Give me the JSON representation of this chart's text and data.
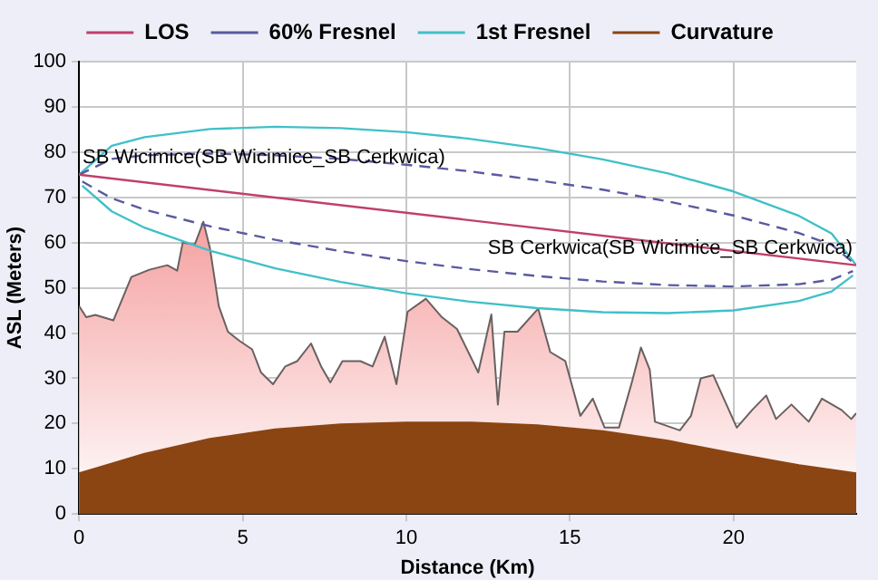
{
  "chart_data": {
    "type": "line",
    "xlabel": "Distance (Km)",
    "ylabel": "ASL (Meters)",
    "xlim": [
      0,
      23.75
    ],
    "xticks": [
      0,
      5,
      10,
      15,
      20
    ],
    "ylim": [
      0,
      100
    ],
    "yticks": [
      0,
      10,
      20,
      30,
      40,
      50,
      60,
      70,
      80,
      90,
      100
    ],
    "grid": true,
    "legend": "top",
    "marker": "none",
    "series": [
      {
        "type": "line",
        "name": "LOS",
        "color": "#c0406a",
        "line_style": "solid",
        "x": [
          0,
          23.75
        ],
        "values": [
          75,
          55
        ]
      },
      {
        "type": "line",
        "name": "60% Fresnel",
        "color": "#5a5aa0",
        "line_style": "dashed",
        "x": [
          0,
          1,
          2,
          4,
          6,
          8,
          10,
          11.875,
          14,
          16,
          18,
          20,
          22,
          23,
          23.75
        ],
        "values": [
          75,
          78.5,
          79.3,
          79.7,
          79.3,
          78.5,
          77.2,
          75.8,
          73.8,
          71.7,
          69.1,
          66.0,
          62.1,
          59.5,
          55
        ]
      },
      {
        "type": "line",
        "color": "#5a5aa0",
        "line_style": "dashed",
        "x": [
          0.1,
          1,
          2,
          4,
          6,
          8,
          10,
          11.875,
          14,
          16,
          18,
          20,
          22,
          23,
          23.65
        ],
        "values": [
          73.5,
          69.8,
          67.3,
          63.6,
          60.6,
          58.1,
          55.9,
          54.2,
          52.6,
          51.4,
          50.6,
          50.3,
          50.8,
          51.8,
          53.7
        ]
      },
      {
        "type": "line",
        "name": "1st Fresnel",
        "color": "#40c0c8",
        "line_style": "solid",
        "x": [
          0,
          1,
          2,
          4,
          6,
          8,
          10,
          11.875,
          14,
          16,
          18,
          20,
          22,
          23,
          23.75
        ],
        "values": [
          75,
          81.4,
          83.3,
          85.1,
          85.6,
          85.3,
          84.4,
          83,
          80.9,
          78.4,
          75.3,
          71.3,
          65.9,
          62.0,
          55
        ]
      },
      {
        "type": "line",
        "color": "#40c0c8",
        "line_style": "solid",
        "x": [
          0.1,
          1,
          2,
          4,
          6,
          8,
          10,
          11.875,
          14,
          16,
          18,
          20,
          22,
          23,
          23.65
        ],
        "values": [
          72.6,
          66.9,
          63.3,
          58.2,
          54.3,
          51.3,
          48.8,
          47,
          45.5,
          44.6,
          44.4,
          45.0,
          47.1,
          49.2,
          52.75
        ]
      },
      {
        "type": "area",
        "name": "Curvature",
        "color": "#8b4513",
        "x": [
          0,
          2,
          4,
          6,
          8,
          10,
          12,
          14,
          16,
          18,
          20,
          22,
          23.75
        ],
        "values": [
          9,
          13.3,
          16.6,
          18.7,
          19.8,
          20.2,
          20.2,
          19.6,
          18.3,
          16.2,
          13.4,
          10.8,
          9
        ]
      },
      {
        "type": "area",
        "color": "#f5a0a0",
        "x": [
          0,
          0.22,
          0.5,
          1.05,
          1.6,
          2.15,
          2.7,
          3.0,
          3.17,
          3.54,
          3.8,
          4.0,
          4.27,
          4.55,
          4.9,
          5.29,
          5.56,
          5.93,
          6.3,
          6.67,
          7.09,
          7.4,
          7.68,
          8.05,
          8.6,
          8.97,
          9.34,
          9.7,
          10.04,
          10.6,
          11.09,
          11.55,
          12.2,
          12.6,
          12.8,
          13.0,
          13.4,
          14.03,
          14.4,
          14.86,
          15.32,
          15.7,
          16.06,
          16.5,
          16.9,
          17.17,
          17.44,
          17.6,
          18.36,
          18.7,
          19.0,
          19.38,
          19.74,
          20.1,
          20.57,
          21.0,
          21.3,
          21.77,
          22.3,
          22.7,
          23.3,
          23.6,
          23.75
        ],
        "values": [
          46,
          43.5,
          44,
          42.8,
          52.4,
          54,
          55,
          53.8,
          60,
          59.6,
          64.6,
          58.8,
          46,
          40.3,
          38.3,
          36.4,
          31.3,
          28.7,
          32.6,
          33.8,
          37.7,
          32.6,
          29.1,
          33.8,
          33.8,
          32.6,
          39.2,
          28.7,
          44.7,
          47.6,
          43.5,
          40.9,
          31.3,
          44.1,
          24.2,
          40.3,
          40.3,
          45.4,
          35.8,
          33.8,
          21.7,
          25.5,
          19.1,
          19.1,
          29.3,
          36.8,
          31.9,
          20.4,
          18.5,
          21.7,
          30,
          30.7,
          24.9,
          19.1,
          23,
          26.2,
          21,
          24.2,
          20.4,
          25.5,
          23,
          21,
          22.3
        ]
      }
    ],
    "annotations": [
      {
        "text": "SB Wicimice(SB Wicimice_SB Cerkwica)",
        "x": 0,
        "y": 75
      },
      {
        "text": "SB Cerkwica(SB Wicimice_SB Cerkwica)",
        "x": 23.75,
        "y": 55
      }
    ]
  }
}
